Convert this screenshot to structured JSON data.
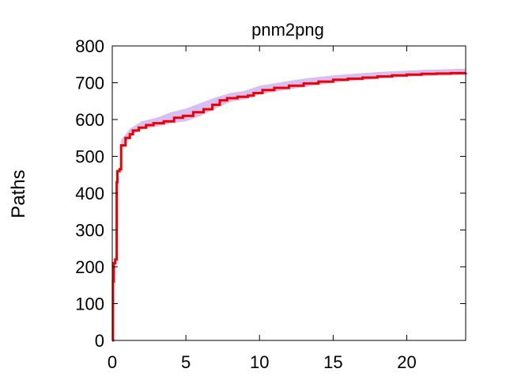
{
  "chart_data": {
    "type": "line",
    "title": "pnm2png",
    "xlabel": "",
    "ylabel": "Paths",
    "xlim": [
      0,
      24
    ],
    "ylim": [
      0,
      800
    ],
    "x_ticks": [
      0,
      5,
      10,
      15,
      20
    ],
    "y_ticks": [
      0,
      100,
      200,
      300,
      400,
      500,
      600,
      700,
      800
    ],
    "grid": false,
    "legend": "none",
    "series": [
      {
        "color": "#ee0000",
        "band_color": "#d6bff2",
        "step": true,
        "points": [
          [
            0,
            0
          ],
          [
            0.05,
            160
          ],
          [
            0.1,
            210
          ],
          [
            0.2,
            220
          ],
          [
            0.3,
            230
          ],
          [
            0.3,
            430
          ],
          [
            0.35,
            460
          ],
          [
            0.5,
            465
          ],
          [
            0.6,
            530
          ],
          [
            0.9,
            550
          ],
          [
            1.2,
            560
          ],
          [
            1.4,
            570
          ],
          [
            1.8,
            578
          ],
          [
            2.3,
            585
          ],
          [
            2.8,
            590
          ],
          [
            3.5,
            595
          ],
          [
            4.2,
            605
          ],
          [
            4.8,
            610
          ],
          [
            5.5,
            620
          ],
          [
            6.2,
            628
          ],
          [
            6.8,
            640
          ],
          [
            7.3,
            652
          ],
          [
            7.8,
            658
          ],
          [
            8.5,
            662
          ],
          [
            9.2,
            665
          ],
          [
            9.6,
            672
          ],
          [
            10.2,
            680
          ],
          [
            11,
            686
          ],
          [
            12,
            692
          ],
          [
            13,
            698
          ],
          [
            14,
            703
          ],
          [
            15,
            708
          ],
          [
            16,
            711
          ],
          [
            17,
            714
          ],
          [
            18,
            717
          ],
          [
            19,
            720
          ],
          [
            20,
            722
          ],
          [
            21,
            724
          ],
          [
            22,
            725
          ],
          [
            23,
            726
          ],
          [
            24,
            727
          ]
        ],
        "band": [
          [
            0,
            0,
            0
          ],
          [
            0.3,
            220,
            240
          ],
          [
            0.6,
            520,
            545
          ],
          [
            1.2,
            555,
            575
          ],
          [
            2,
            575,
            595
          ],
          [
            3,
            580,
            605
          ],
          [
            4,
            590,
            620
          ],
          [
            5,
            595,
            630
          ],
          [
            6,
            610,
            645
          ],
          [
            7,
            630,
            660
          ],
          [
            8,
            648,
            672
          ],
          [
            9,
            655,
            678
          ],
          [
            10,
            668,
            692
          ],
          [
            11,
            675,
            698
          ],
          [
            12,
            682,
            705
          ],
          [
            13,
            688,
            711
          ],
          [
            14,
            694,
            716
          ],
          [
            15,
            700,
            720
          ],
          [
            16,
            704,
            723
          ],
          [
            17,
            707,
            726
          ],
          [
            18,
            711,
            729
          ],
          [
            19,
            714,
            731
          ],
          [
            20,
            716,
            733
          ],
          [
            21,
            718,
            735
          ],
          [
            22,
            719,
            736
          ],
          [
            23,
            720,
            737
          ],
          [
            24,
            721,
            738
          ]
        ]
      }
    ]
  }
}
